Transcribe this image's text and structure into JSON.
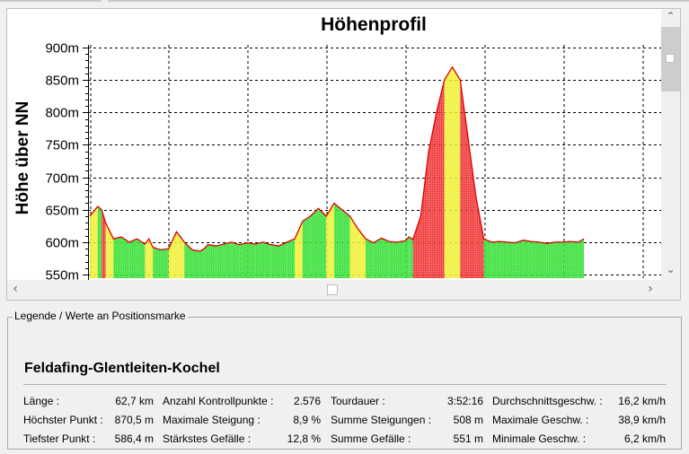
{
  "chart": {
    "title": "Höhenprofil",
    "ylabel": "Höhe über NN"
  },
  "chart_data": {
    "type": "area",
    "title": "Höhenprofil",
    "xlabel": "",
    "ylabel": "Höhe über NN",
    "ylim": [
      545,
      915
    ],
    "yticks": [
      "900m",
      "850m",
      "800m",
      "750m",
      "700m",
      "650m",
      "600m",
      "550m"
    ],
    "ytick_values": [
      900,
      850,
      800,
      750,
      700,
      650,
      600,
      550
    ],
    "grid": true,
    "x": [
      0,
      1,
      1.5,
      2,
      3,
      4,
      5,
      6,
      7,
      7.5,
      8,
      9,
      10,
      11,
      12,
      13,
      14,
      14.5,
      15,
      16,
      17,
      18,
      19,
      20,
      21,
      22,
      23,
      24,
      25,
      26,
      27,
      28,
      29,
      30,
      31,
      32,
      33,
      34,
      35,
      36,
      37,
      38,
      39,
      40,
      40.5,
      41,
      42,
      43,
      44,
      45,
      46,
      47,
      48,
      49,
      50,
      51,
      52,
      53,
      54,
      55,
      56,
      57,
      58,
      59,
      60,
      61,
      62,
      62.7
    ],
    "y": [
      640,
      655,
      650,
      630,
      605,
      608,
      600,
      605,
      597,
      605,
      592,
      588,
      590,
      616,
      600,
      588,
      586,
      590,
      596,
      594,
      597,
      600,
      596,
      599,
      597,
      600,
      596,
      594,
      600,
      605,
      632,
      640,
      652,
      640,
      660,
      650,
      640,
      621,
      605,
      599,
      606,
      601,
      600,
      602,
      608,
      604,
      640,
      740,
      800,
      850,
      870,
      850,
      760,
      670,
      605,
      600,
      601,
      600,
      599,
      603,
      601,
      600,
      598,
      600,
      600,
      601,
      600,
      605
    ],
    "gradient_colors": {
      "flat": "#22dd22",
      "moderate": "#eeee22",
      "steep": "#ee2222"
    },
    "profile_line_color": "#dd0000"
  },
  "legend": {
    "group_title": "Legende / Werte an Positionsmarke",
    "tour_title": "Feldafing-Glentleiten-Kochel",
    "rows": [
      [
        {
          "label": "Länge :",
          "value": "62,7 km"
        },
        {
          "label": "Anzahl Kontrollpunkte :",
          "value": "2.576"
        },
        {
          "label": "Tourdauer :",
          "value": "3:52:16"
        },
        {
          "label": "Durchschnittsgeschw. :",
          "value": "16,2 km/h"
        }
      ],
      [
        {
          "label": "Höchster Punkt :",
          "value": "870,5 m"
        },
        {
          "label": "Maximale Steigung :",
          "value": "8,9 %"
        },
        {
          "label": "Summe Steigungen :",
          "value": "508 m"
        },
        {
          "label": "Maximale Geschw. :",
          "value": "38,9 km/h"
        }
      ],
      [
        {
          "label": "Tiefster Punkt :",
          "value": "586,4 m"
        },
        {
          "label": "Stärkstes Gefälle :",
          "value": "12,8 %"
        },
        {
          "label": "Summe Gefälle :",
          "value": "551 m"
        },
        {
          "label": "Minimale Geschw. :",
          "value": "6,2 km/h"
        }
      ]
    ]
  }
}
